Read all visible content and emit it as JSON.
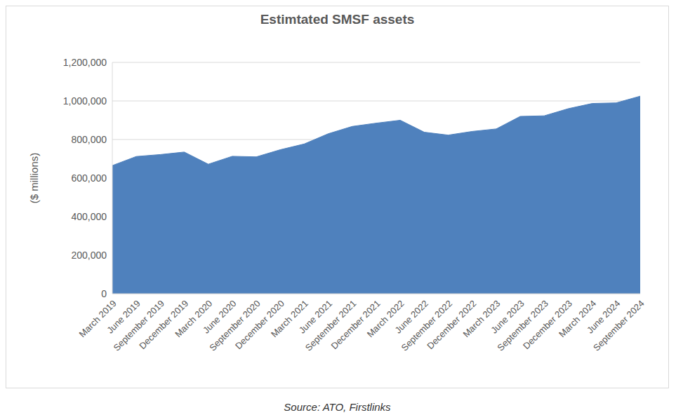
{
  "chart_data": {
    "type": "area",
    "title": "Estimtated SMSF assets",
    "ylabel": "($ millions)",
    "source": "Source: ATO, Firstlinks",
    "categories": [
      "March 2019",
      "June 2019",
      "September 2019",
      "December 2019",
      "March 2020",
      "June 2020",
      "September 2020",
      "December 2020",
      "March 2021",
      "June 2021",
      "September 2021",
      "December 2021",
      "March 2022",
      "June 2022",
      "September 2022",
      "December 2022",
      "March 2023",
      "June 2023",
      "September 2023",
      "December 2023",
      "March 2024",
      "June 2024",
      "September 2024"
    ],
    "values": [
      665000,
      712000,
      722000,
      735000,
      672000,
      713000,
      710000,
      747000,
      777000,
      830000,
      868000,
      885000,
      900000,
      838000,
      823000,
      842000,
      855000,
      920000,
      923000,
      960000,
      987000,
      990000,
      1025000
    ],
    "color": "#4f81bd",
    "ylim": [
      0,
      1200000
    ],
    "yticks": [
      0,
      {
        "value": 200000,
        "label": "200,000"
      },
      {
        "value": 400000,
        "label": "400,000"
      },
      {
        "value": 600000,
        "label": "600,000"
      },
      {
        "value": 800000,
        "label": "800,000"
      },
      {
        "value": 1000000,
        "label": "1,000,000"
      },
      {
        "value": 1200000,
        "label": "1,200,000"
      }
    ],
    "grid": true
  }
}
